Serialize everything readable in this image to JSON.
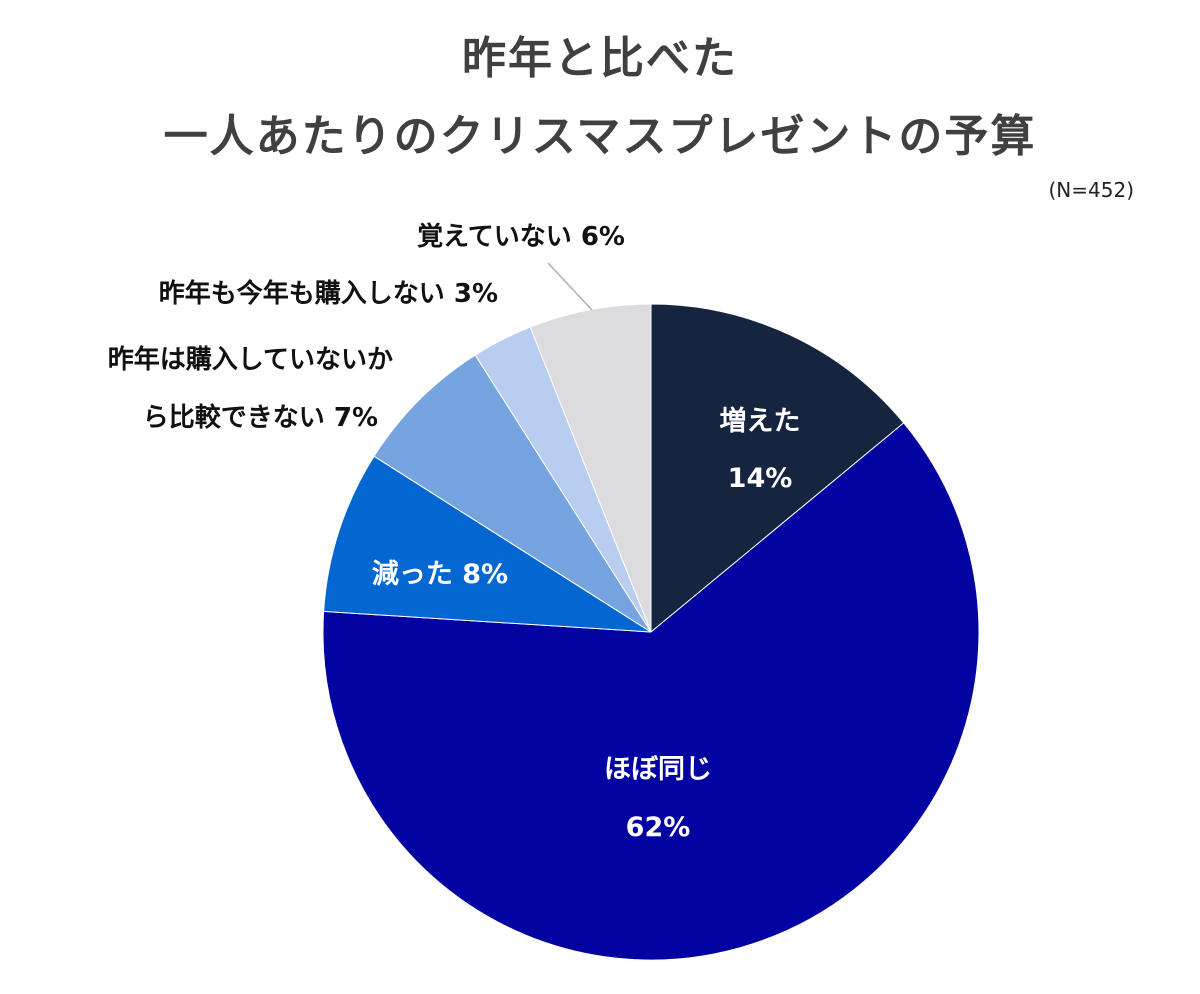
{
  "title_line1": "昨年と比べた",
  "title_line2": "一人あたりのクリスマスプレゼントの予算",
  "sample_note": "(N=452)",
  "chart_data": {
    "type": "pie",
    "title": "昨年と比べた 一人あたりのクリスマスプレゼントの予算",
    "note": "(N=452)",
    "start": "12 o'clock, clockwise",
    "slices": [
      {
        "label": "増えた",
        "value": 14,
        "value_label": "14%",
        "color": "#15243f",
        "label_inside": true
      },
      {
        "label": "ほぼ同じ",
        "value": 62,
        "value_label": "62%",
        "color": "#0303a1",
        "label_inside": true
      },
      {
        "label": "減った",
        "value": 8,
        "value_label": "8%",
        "color": "#0466d0",
        "label_inside": true
      },
      {
        "label": "昨年は購入していないから比較できない",
        "value": 7,
        "value_label": "7%",
        "color": "#75a4e0",
        "label_inside": false
      },
      {
        "label": "昨年も今年も購入しない",
        "value": 3,
        "value_label": "3%",
        "color": "#b8cdf0",
        "label_inside": false
      },
      {
        "label": "覚えていない",
        "value": 6,
        "value_label": "6%",
        "color": "#dcdcde",
        "label_inside": false
      }
    ],
    "label_texts": {
      "increased_name": "増えた",
      "increased_pct": "14%",
      "same_name": "ほぼ同じ",
      "same_pct": "62%",
      "decreased": "減った 8%",
      "not_purchased_last_year_line1": "昨年は購入していないか",
      "not_purchased_last_year_line2": "ら比較できない 7%",
      "not_purchased_both": "昨年も今年も購入しない 3%",
      "dont_remember": "覚えていない 6%"
    }
  }
}
